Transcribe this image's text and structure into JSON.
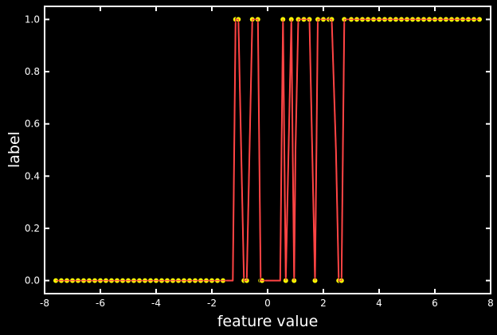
{
  "chart_data": {
    "type": "line",
    "title": "",
    "xlabel": "feature value",
    "ylabel": "label",
    "xlim": [
      -8,
      8
    ],
    "ylim": [
      -0.05,
      1.05
    ],
    "x_ticks": [
      -8,
      -6,
      -4,
      -2,
      0,
      2,
      4,
      6,
      8
    ],
    "y_ticks": [
      0.0,
      0.2,
      0.4,
      0.6,
      0.8,
      1.0
    ],
    "x_tick_labels": [
      "-8",
      "-6",
      "-4",
      "-2",
      "0",
      "2",
      "4",
      "6",
      "8"
    ],
    "y_tick_labels": [
      "0.0",
      "0.2",
      "0.4",
      "0.6",
      "0.8",
      "1.0"
    ],
    "grid": false,
    "series": [
      {
        "kind": "scatter",
        "color": "#ffff00",
        "points": [
          [
            -7.6,
            0
          ],
          [
            -7.4,
            0
          ],
          [
            -7.2,
            0
          ],
          [
            -7.0,
            0
          ],
          [
            -6.8,
            0
          ],
          [
            -6.6,
            0
          ],
          [
            -6.4,
            0
          ],
          [
            -6.2,
            0
          ],
          [
            -6.0,
            0
          ],
          [
            -5.8,
            0
          ],
          [
            -5.6,
            0
          ],
          [
            -5.4,
            0
          ],
          [
            -5.2,
            0
          ],
          [
            -5.0,
            0
          ],
          [
            -4.8,
            0
          ],
          [
            -4.6,
            0
          ],
          [
            -4.4,
            0
          ],
          [
            -4.2,
            0
          ],
          [
            -4.0,
            0
          ],
          [
            -3.8,
            0
          ],
          [
            -3.6,
            0
          ],
          [
            -3.4,
            0
          ],
          [
            -3.2,
            0
          ],
          [
            -3.0,
            0
          ],
          [
            -2.8,
            0
          ],
          [
            -2.6,
            0
          ],
          [
            -2.4,
            0
          ],
          [
            -2.2,
            0
          ],
          [
            -2.0,
            0
          ],
          [
            -1.8,
            0
          ],
          [
            -1.6,
            0
          ],
          [
            -1.15,
            1
          ],
          [
            -1.05,
            1
          ],
          [
            -0.85,
            0
          ],
          [
            -0.75,
            0
          ],
          [
            -0.55,
            1
          ],
          [
            -0.35,
            1
          ],
          [
            -0.25,
            0
          ],
          [
            -0.2,
            0
          ],
          [
            0.55,
            1
          ],
          [
            0.65,
            0
          ],
          [
            0.85,
            1
          ],
          [
            0.95,
            0
          ],
          [
            1.1,
            1
          ],
          [
            1.3,
            1
          ],
          [
            1.5,
            1
          ],
          [
            1.7,
            0
          ],
          [
            1.8,
            1
          ],
          [
            2.0,
            1
          ],
          [
            2.2,
            1
          ],
          [
            2.3,
            1
          ],
          [
            2.55,
            0
          ],
          [
            2.65,
            0
          ],
          [
            2.75,
            1
          ],
          [
            3.0,
            1
          ],
          [
            3.2,
            1
          ],
          [
            3.4,
            1
          ],
          [
            3.6,
            1
          ],
          [
            3.8,
            1
          ],
          [
            4.0,
            1
          ],
          [
            4.2,
            1
          ],
          [
            4.4,
            1
          ],
          [
            4.6,
            1
          ],
          [
            4.8,
            1
          ],
          [
            5.0,
            1
          ],
          [
            5.2,
            1
          ],
          [
            5.4,
            1
          ],
          [
            5.6,
            1
          ],
          [
            5.8,
            1
          ],
          [
            6.0,
            1
          ],
          [
            6.2,
            1
          ],
          [
            6.4,
            1
          ],
          [
            6.6,
            1
          ],
          [
            6.8,
            1
          ],
          [
            7.0,
            1
          ],
          [
            7.2,
            1
          ],
          [
            7.4,
            1
          ],
          [
            7.6,
            1
          ]
        ]
      },
      {
        "kind": "line",
        "color": "#ff4444",
        "points": [
          [
            -7.6,
            0
          ],
          [
            -1.35,
            0
          ],
          [
            -1.25,
            0
          ],
          [
            -1.15,
            1
          ],
          [
            -1.05,
            1
          ],
          [
            -0.95,
            0.5
          ],
          [
            -0.85,
            0
          ],
          [
            -0.75,
            0
          ],
          [
            -0.65,
            0.5
          ],
          [
            -0.55,
            1
          ],
          [
            -0.35,
            1
          ],
          [
            -0.3,
            0.5
          ],
          [
            -0.25,
            0
          ],
          [
            0.45,
            0
          ],
          [
            0.5,
            0.5
          ],
          [
            0.55,
            1
          ],
          [
            0.6,
            0.5
          ],
          [
            0.65,
            0
          ],
          [
            0.75,
            0.5
          ],
          [
            0.85,
            1
          ],
          [
            0.9,
            0.5
          ],
          [
            0.95,
            0
          ],
          [
            1.0,
            0.5
          ],
          [
            1.1,
            1
          ],
          [
            1.5,
            1
          ],
          [
            1.6,
            0.5
          ],
          [
            1.7,
            0
          ],
          [
            1.75,
            0.5
          ],
          [
            1.8,
            1
          ],
          [
            2.3,
            1
          ],
          [
            2.45,
            0.5
          ],
          [
            2.55,
            0
          ],
          [
            2.65,
            0
          ],
          [
            2.7,
            0.5
          ],
          [
            2.75,
            1
          ],
          [
            7.6,
            1
          ]
        ]
      }
    ]
  }
}
